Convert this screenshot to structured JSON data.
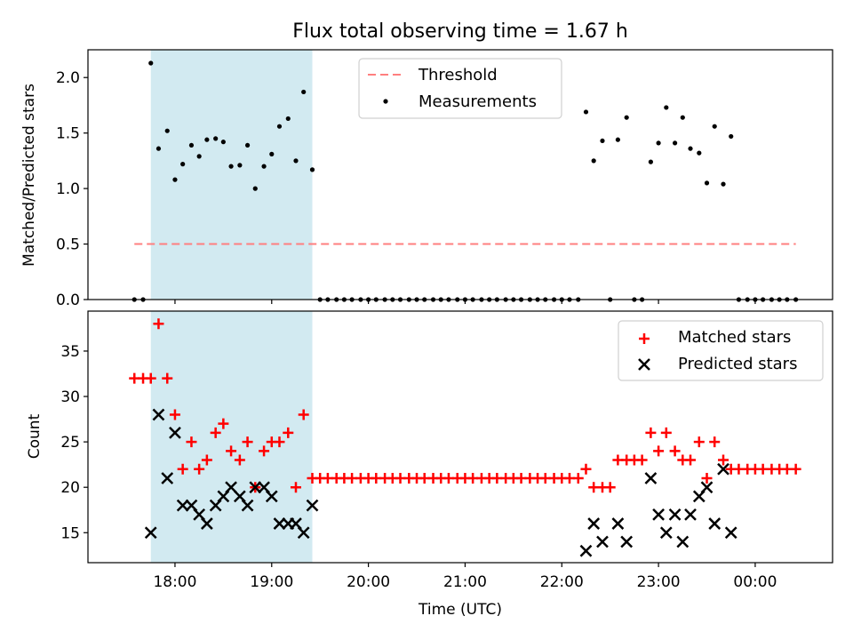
{
  "chart_data": {
    "title": "Flux total observing time = 1.67 h",
    "colors": {
      "threshold": "#ff7f7f",
      "shade": "#add8e6",
      "measure": "#000000",
      "matched": "#ff0000",
      "predicted": "#000000"
    },
    "shaded_interval": {
      "start": 17.75,
      "end": 19.42
    },
    "x_axis": {
      "label": "Time (UTC)",
      "range": [
        17.1,
        24.8
      ],
      "ticks": [
        {
          "v": 18,
          "label": "18:00"
        },
        {
          "v": 19,
          "label": "19:00"
        },
        {
          "v": 20,
          "label": "20:00"
        },
        {
          "v": 21,
          "label": "21:00"
        },
        {
          "v": 22,
          "label": "22:00"
        },
        {
          "v": 23,
          "label": "23:00"
        },
        {
          "v": 24,
          "label": "00:00"
        }
      ]
    },
    "panels": [
      {
        "type": "scatter",
        "ylabel": "Matched/Predicted stars",
        "ylim": [
          0,
          2.25
        ],
        "yticks": [
          {
            "v": 0,
            "label": "0.0"
          },
          {
            "v": 0.5,
            "label": "0.5"
          },
          {
            "v": 1.0,
            "label": "1.0"
          },
          {
            "v": 1.5,
            "label": "1.5"
          },
          {
            "v": 2.0,
            "label": "2.0"
          }
        ],
        "legend": {
          "position": "top-center",
          "threshold_label": "Threshold",
          "measurements_label": "Measurements"
        },
        "threshold": {
          "value": 0.5,
          "x_start": 17.58,
          "x_end": 24.42
        },
        "measurements": {
          "x": [
            17.58,
            17.67,
            17.75,
            17.83,
            17.92,
            18.0,
            18.08,
            18.17,
            18.25,
            18.33,
            18.42,
            18.5,
            18.58,
            18.67,
            18.75,
            18.83,
            18.92,
            19.0,
            19.08,
            19.17,
            19.25,
            19.33,
            19.42,
            19.5,
            19.58,
            19.67,
            19.75,
            19.83,
            19.92,
            20.0,
            20.08,
            20.17,
            20.25,
            20.33,
            20.42,
            20.5,
            20.58,
            20.67,
            20.75,
            20.83,
            20.92,
            21.0,
            21.08,
            21.17,
            21.25,
            21.33,
            21.42,
            21.5,
            21.58,
            21.67,
            21.75,
            21.83,
            21.92,
            22.0,
            22.08,
            22.17,
            22.25,
            22.33,
            22.42,
            22.5,
            22.58,
            22.67,
            22.75,
            22.83,
            22.92,
            23.0,
            23.08,
            23.17,
            23.25,
            23.33,
            23.42,
            23.5,
            23.58,
            23.67,
            23.75,
            23.83,
            23.92,
            24.0,
            24.08,
            24.17,
            24.25,
            24.33,
            24.42
          ],
          "y": [
            0,
            0,
            2.13,
            1.36,
            1.52,
            1.08,
            1.22,
            1.39,
            1.29,
            1.44,
            1.45,
            1.42,
            1.2,
            1.21,
            1.39,
            1.0,
            1.2,
            1.31,
            1.56,
            1.63,
            1.25,
            1.87,
            1.17,
            0,
            0,
            0,
            0,
            0,
            0,
            0,
            0,
            0,
            0,
            0,
            0,
            0,
            0,
            0,
            0,
            0,
            0,
            0,
            0,
            0,
            0,
            0,
            0,
            0,
            0,
            0,
            0,
            0,
            0,
            0,
            0,
            0,
            1.69,
            1.25,
            1.43,
            0,
            1.44,
            1.64,
            0,
            0,
            1.24,
            1.41,
            1.73,
            1.41,
            1.64,
            1.36,
            1.32,
            1.05,
            1.56,
            1.04,
            1.47,
            0,
            0,
            0,
            0,
            0,
            0,
            0,
            0
          ]
        }
      },
      {
        "type": "scatter",
        "ylabel": "Count",
        "ylim": [
          11.7,
          39.4
        ],
        "yticks": [
          {
            "v": 15,
            "label": "15"
          },
          {
            "v": 20,
            "label": "20"
          },
          {
            "v": 25,
            "label": "25"
          },
          {
            "v": 30,
            "label": "30"
          },
          {
            "v": 35,
            "label": "35"
          }
        ],
        "legend": {
          "position": "top-right",
          "matched_label": "Matched stars",
          "predicted_label": "Predicted stars"
        },
        "matched": {
          "x": [
            17.58,
            17.67,
            17.75,
            17.83,
            17.92,
            18.0,
            18.08,
            18.17,
            18.25,
            18.33,
            18.42,
            18.5,
            18.58,
            18.67,
            18.75,
            18.83,
            18.92,
            19.0,
            19.08,
            19.17,
            19.25,
            19.33,
            19.42,
            19.5,
            19.58,
            19.67,
            19.75,
            19.83,
            19.92,
            20.0,
            20.08,
            20.17,
            20.25,
            20.33,
            20.42,
            20.5,
            20.58,
            20.67,
            20.75,
            20.83,
            20.92,
            21.0,
            21.08,
            21.17,
            21.25,
            21.33,
            21.42,
            21.5,
            21.58,
            21.67,
            21.75,
            21.83,
            21.92,
            22.0,
            22.08,
            22.17,
            22.25,
            22.33,
            22.42,
            22.5,
            22.58,
            22.67,
            22.75,
            22.83,
            22.92,
            23.0,
            23.08,
            23.17,
            23.25,
            23.33,
            23.42,
            23.5,
            23.58,
            23.67,
            23.75,
            23.83,
            23.92,
            24.0,
            24.08,
            24.17,
            24.25,
            24.33,
            24.42
          ],
          "y": [
            32,
            32,
            32,
            38,
            32,
            28,
            22,
            25,
            22,
            23,
            26,
            27,
            24,
            23,
            25,
            20,
            24,
            25,
            25,
            26,
            20,
            28,
            21,
            21,
            21,
            21,
            21,
            21,
            21,
            21,
            21,
            21,
            21,
            21,
            21,
            21,
            21,
            21,
            21,
            21,
            21,
            21,
            21,
            21,
            21,
            21,
            21,
            21,
            21,
            21,
            21,
            21,
            21,
            21,
            21,
            21,
            22,
            20,
            20,
            20,
            23,
            23,
            23,
            23,
            26,
            24,
            26,
            24,
            23,
            23,
            25,
            21,
            25,
            23,
            22,
            22,
            22,
            22,
            22,
            22,
            22,
            22,
            22
          ]
        },
        "predicted": {
          "x": [
            17.75,
            17.83,
            17.92,
            18.0,
            18.08,
            18.17,
            18.25,
            18.33,
            18.42,
            18.5,
            18.58,
            18.67,
            18.75,
            18.83,
            18.92,
            19.0,
            19.08,
            19.17,
            19.25,
            19.33,
            19.42,
            22.25,
            22.33,
            22.42,
            22.58,
            22.67,
            22.92,
            23.0,
            23.08,
            23.17,
            23.25,
            23.33,
            23.42,
            23.5,
            23.58,
            23.67,
            23.75
          ],
          "y": [
            15,
            28,
            21,
            26,
            18,
            18,
            17,
            16,
            18,
            19,
            20,
            19,
            18,
            20,
            20,
            19,
            16,
            16,
            16,
            15,
            18,
            13,
            16,
            14,
            16,
            14,
            21,
            17,
            15,
            17,
            14,
            17,
            19,
            20,
            16,
            22,
            15
          ]
        }
      }
    ]
  }
}
